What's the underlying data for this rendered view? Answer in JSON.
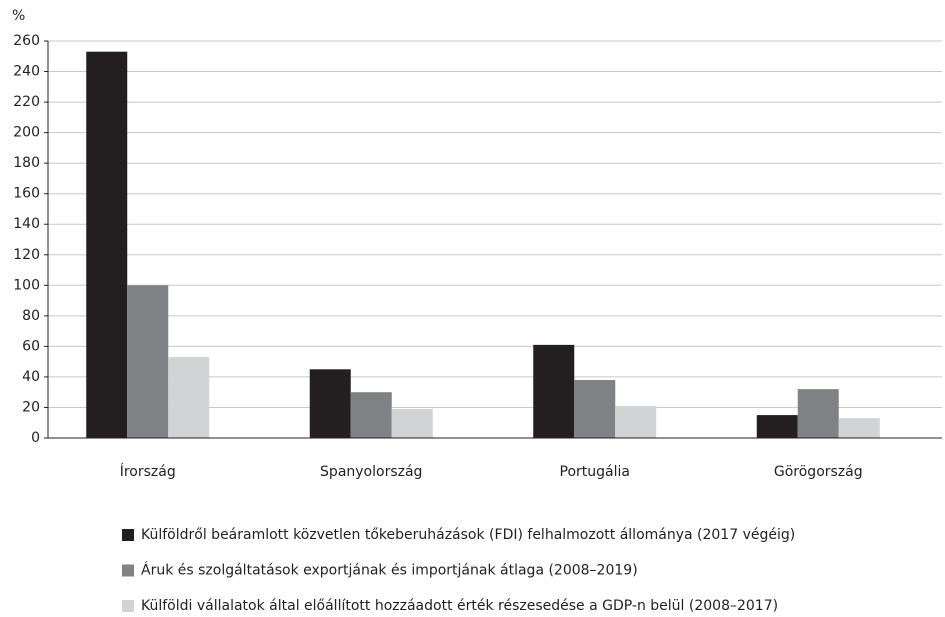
{
  "chart_data": {
    "type": "bar",
    "y_label": "%",
    "categories": [
      "Írország",
      "Spanyolország",
      "Portugália",
      "Görögország"
    ],
    "series": [
      {
        "name": "Külföldről beáramlott közvetlen tőkeberuházások (FDI) felhalmozott állománya (2017 végéig)",
        "color": "#231f20",
        "values": [
          253,
          45,
          61,
          15
        ]
      },
      {
        "name": "Áruk és szolgáltatások exportjának és importjának átlaga (2008–2019)",
        "color": "#808184",
        "values": [
          100,
          30,
          38,
          32
        ]
      },
      {
        "name": "Külföldi vállalatok által előállított hozzáadott érték részesedése a GDP-n belül (2008–2017)",
        "color": "#d1d3d4",
        "values": [
          53,
          19,
          21,
          13
        ]
      }
    ],
    "ylim": [
      0,
      260
    ],
    "yticks": [
      0,
      20,
      40,
      60,
      80,
      100,
      120,
      140,
      160,
      180,
      200,
      220,
      240,
      260
    ],
    "grid": true,
    "legend": "bottom"
  }
}
